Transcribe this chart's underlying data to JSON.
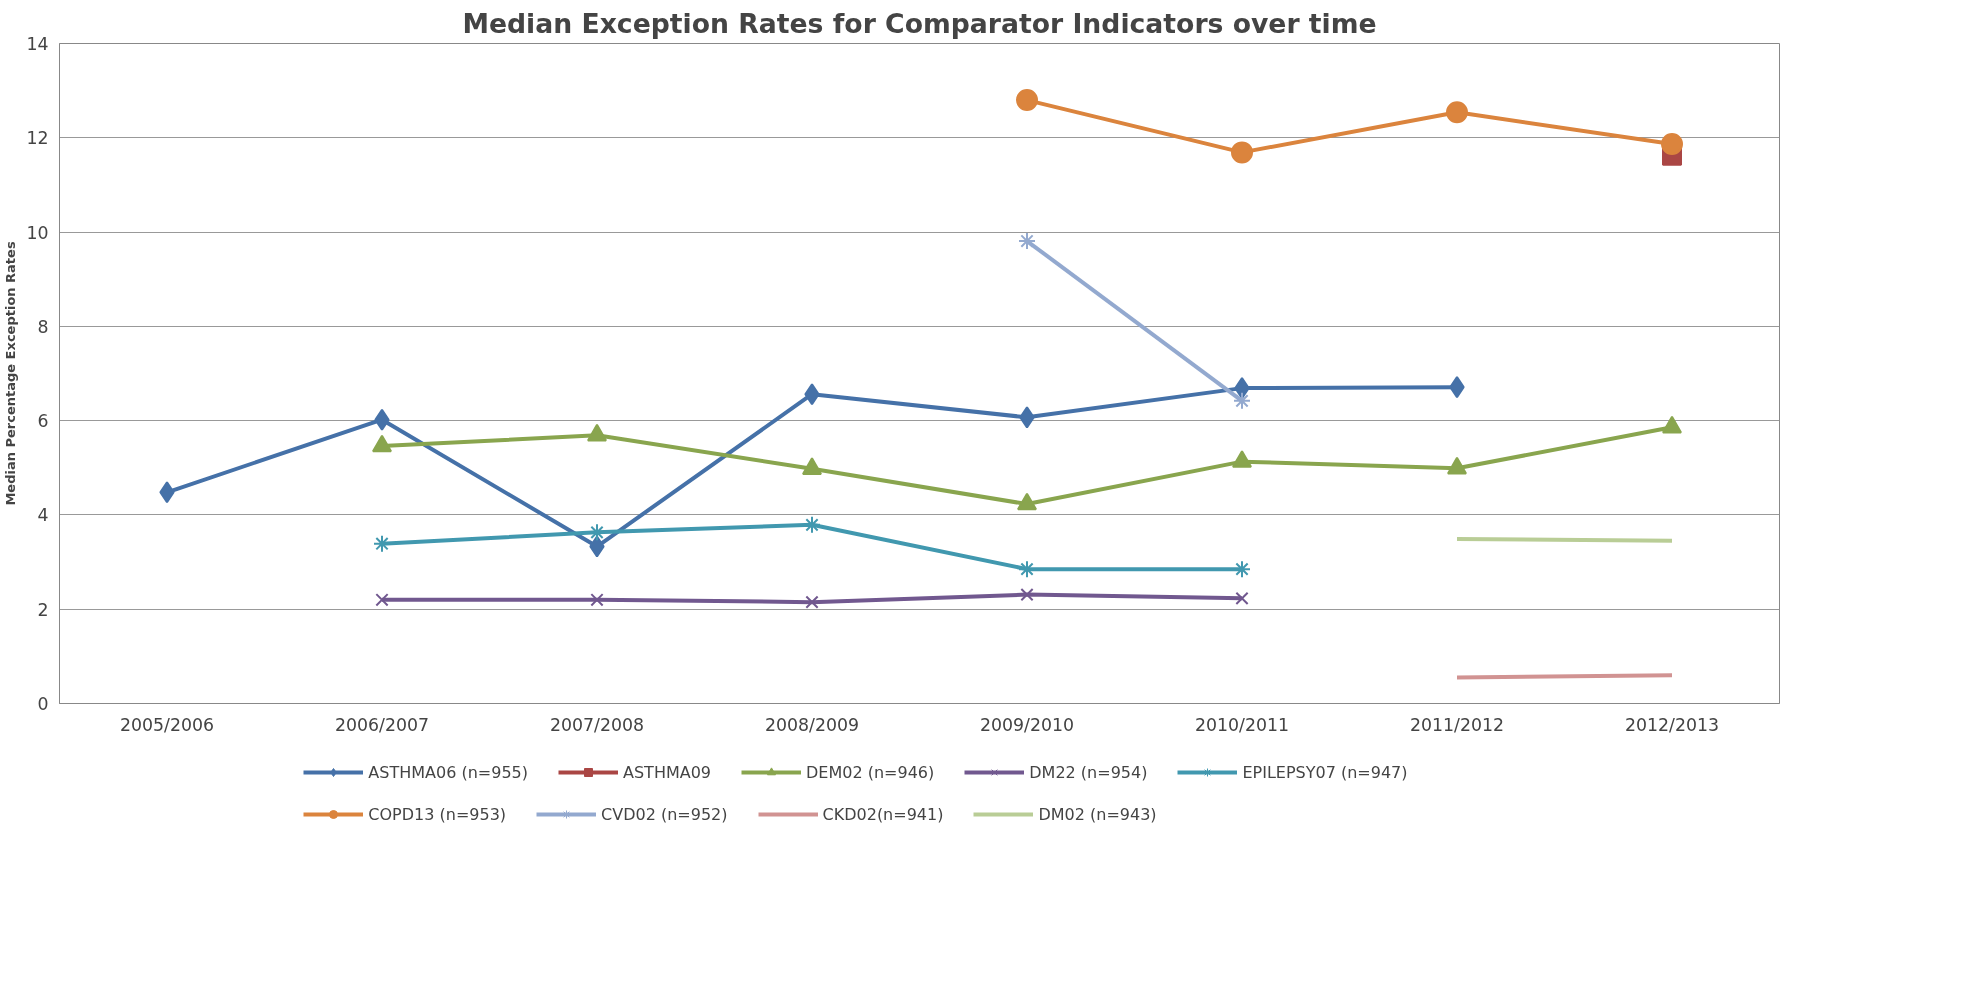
{
  "chart_data": {
    "type": "line",
    "title": "Median Exception Rates for Comparator Indicators over time",
    "ylabel": "Median Percentage Exception Rates",
    "categories": [
      "2005/2006",
      "2006/2007",
      "2007/2008",
      "2008/2009",
      "2009/2010",
      "2010/2011",
      "2011/2012",
      "2012/2013"
    ],
    "ylim": [
      0,
      14
    ],
    "yticks": [
      0,
      2,
      4,
      6,
      8,
      10,
      12,
      14
    ],
    "grid": "y",
    "legend": "bottom",
    "series": [
      {
        "name": "ASTHMA06 (n=955)",
        "color": "#4571a8",
        "marker": "diamond",
        "values": [
          4.48,
          6.02,
          3.33,
          6.56,
          6.07,
          6.69,
          6.71,
          null
        ]
      },
      {
        "name": "ASTHMA09",
        "color": "#aa4644",
        "marker": "square",
        "values": [
          null,
          null,
          null,
          null,
          null,
          null,
          null,
          11.62
        ]
      },
      {
        "name": "DEM02 (n=946)",
        "color": "#89a54e",
        "marker": "triangle",
        "values": [
          null,
          5.46,
          5.69,
          4.98,
          4.23,
          5.13,
          4.99,
          5.86
        ]
      },
      {
        "name": "DM22 (n=954)",
        "color": "#71588f",
        "marker": "x",
        "values": [
          null,
          2.2,
          2.2,
          2.15,
          2.31,
          2.23,
          null,
          null
        ]
      },
      {
        "name": "EPILEPSY07 (n=947)",
        "color": "#4198af",
        "marker": "cross",
        "values": [
          null,
          3.39,
          3.63,
          3.79,
          2.85,
          2.85,
          null,
          null
        ]
      },
      {
        "name": "COPD13 (n=953)",
        "color": "#db843d",
        "marker": "circle",
        "values": [
          null,
          null,
          null,
          null,
          12.8,
          11.69,
          12.54,
          11.87
        ]
      },
      {
        "name": "CVD02 (n=952)",
        "color": "#93a9cf",
        "marker": "cross",
        "values": [
          null,
          null,
          null,
          null,
          9.81,
          6.42,
          null,
          null
        ]
      },
      {
        "name": "CKD02(n=941)",
        "color": "#d19392",
        "marker": "none",
        "values": [
          null,
          null,
          null,
          null,
          null,
          null,
          0.55,
          0.6
        ]
      },
      {
        "name": "DM02 (n=943)",
        "color": "#b9cd96",
        "marker": "none",
        "values": [
          null,
          null,
          null,
          null,
          null,
          null,
          3.49,
          3.45
        ]
      }
    ]
  }
}
